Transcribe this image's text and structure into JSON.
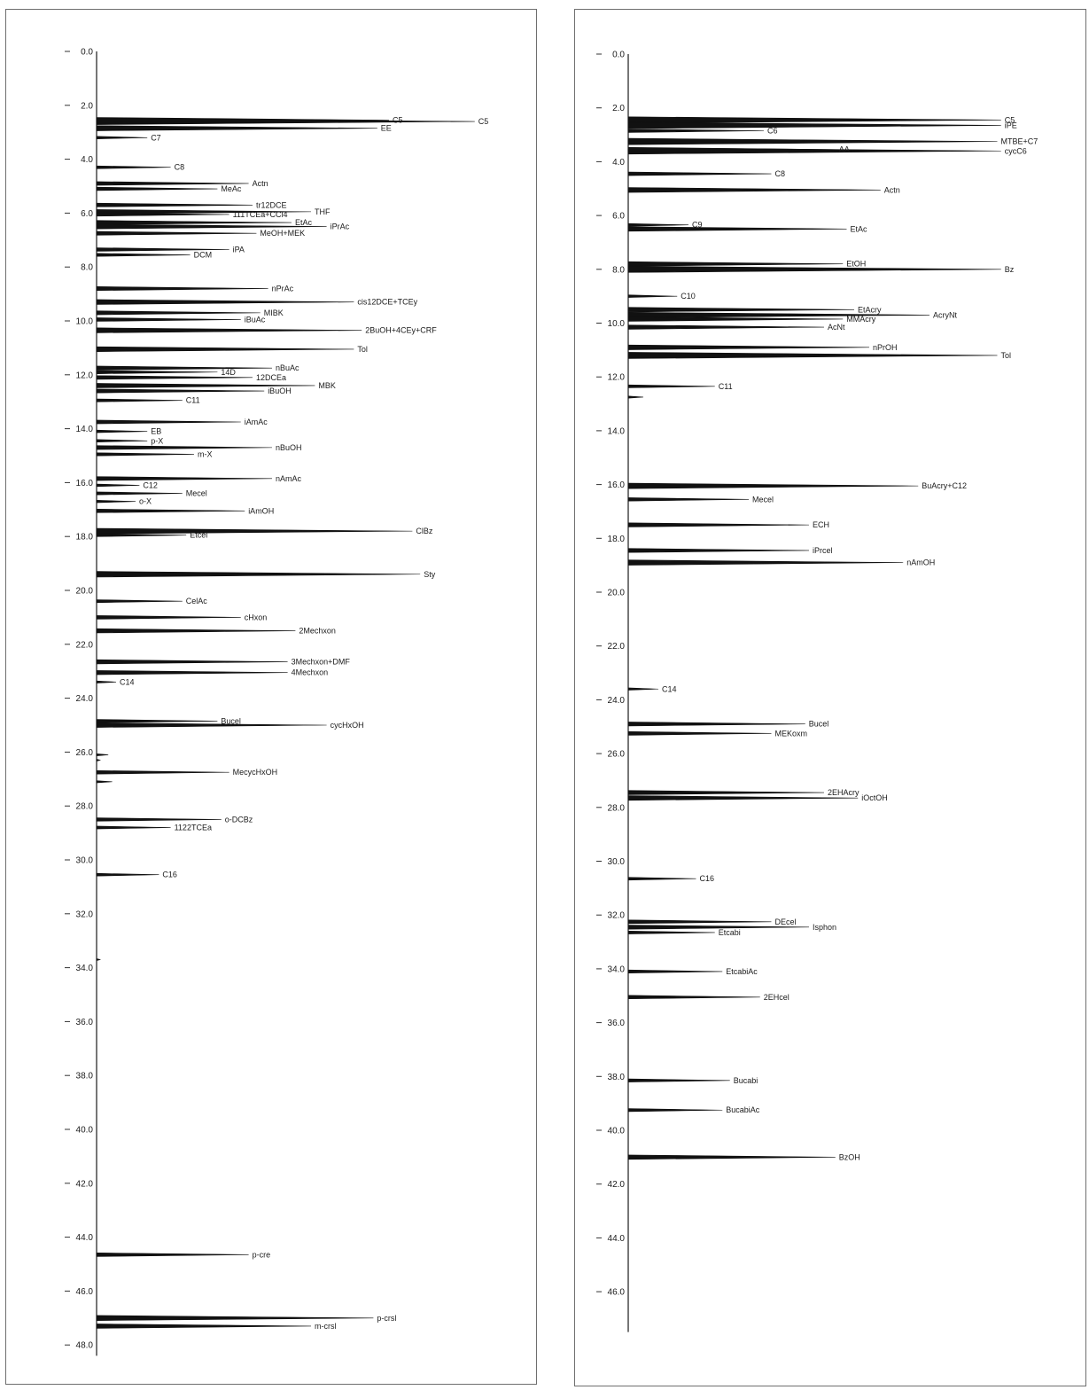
{
  "chart_data": [
    {
      "type": "line",
      "orientation": "vertical",
      "title": "",
      "xlabel": "",
      "ylabel": "",
      "yticks": [
        0.0,
        2.0,
        4.0,
        6.0,
        8.0,
        10.0,
        12.0,
        14.0,
        16.0,
        18.0,
        20.0,
        22.0,
        24.0,
        26.0,
        28.0,
        30.0,
        32.0,
        34.0,
        36.0,
        38.0,
        40.0,
        42.0,
        44.0,
        46.0,
        48.0
      ],
      "ylim": [
        0,
        48
      ],
      "grid": false,
      "peaks": [
        {
          "t": 2.6,
          "h": 0.97,
          "label": "C5"
        },
        {
          "t": 2.55,
          "h": 0.75,
          "label": "C5"
        },
        {
          "t": 2.85,
          "h": 0.72,
          "label": "EE"
        },
        {
          "t": 3.2,
          "h": 0.13,
          "label": "C7"
        },
        {
          "t": 4.3,
          "h": 0.19,
          "label": "C8"
        },
        {
          "t": 4.9,
          "h": 0.39,
          "label": "Actn"
        },
        {
          "t": 5.1,
          "h": 0.31,
          "label": "MeAc"
        },
        {
          "t": 5.7,
          "h": 0.4,
          "label": "tr12DCE"
        },
        {
          "t": 5.95,
          "h": 0.55,
          "label": "THF"
        },
        {
          "t": 6.05,
          "h": 0.34,
          "label": "111TCEa+CCl4"
        },
        {
          "t": 6.35,
          "h": 0.5,
          "label": "EtAc"
        },
        {
          "t": 6.5,
          "h": 0.59,
          "label": "iPrAc"
        },
        {
          "t": 6.75,
          "h": 0.41,
          "label": "MeOH+MEK"
        },
        {
          "t": 7.35,
          "h": 0.34,
          "label": "iPA"
        },
        {
          "t": 7.55,
          "h": 0.24,
          "label": "DCM"
        },
        {
          "t": 8.8,
          "h": 0.44,
          "label": "nPrAc"
        },
        {
          "t": 9.3,
          "h": 0.66,
          "label": "cis12DCE+TCEy"
        },
        {
          "t": 9.7,
          "h": 0.42,
          "label": "MIBK"
        },
        {
          "t": 9.95,
          "h": 0.37,
          "label": "iBuAc"
        },
        {
          "t": 10.35,
          "h": 0.68,
          "label": "2BuOH+4CEy+CRF"
        },
        {
          "t": 11.05,
          "h": 0.66,
          "label": "Tol"
        },
        {
          "t": 11.75,
          "h": 0.45,
          "label": "nBuAc"
        },
        {
          "t": 11.9,
          "h": 0.31,
          "label": "14D"
        },
        {
          "t": 12.1,
          "h": 0.4,
          "label": "12DCEa"
        },
        {
          "t": 12.4,
          "h": 0.56,
          "label": "MBK"
        },
        {
          "t": 12.6,
          "h": 0.43,
          "label": "iBuOH"
        },
        {
          "t": 12.95,
          "h": 0.22,
          "label": "C11"
        },
        {
          "t": 13.75,
          "h": 0.37,
          "label": "iAmAc"
        },
        {
          "t": 14.1,
          "h": 0.13,
          "label": "EB"
        },
        {
          "t": 14.45,
          "h": 0.13,
          "label": "p-X"
        },
        {
          "t": 14.7,
          "h": 0.45,
          "label": "nBuOH"
        },
        {
          "t": 14.95,
          "h": 0.25,
          "label": "m-X"
        },
        {
          "t": 15.85,
          "h": 0.45,
          "label": "nAmAc"
        },
        {
          "t": 16.1,
          "h": 0.11,
          "label": "C12"
        },
        {
          "t": 16.4,
          "h": 0.22,
          "label": "Mecel"
        },
        {
          "t": 16.7,
          "h": 0.1,
          "label": "o-X"
        },
        {
          "t": 17.05,
          "h": 0.38,
          "label": "iAmOH"
        },
        {
          "t": 17.8,
          "h": 0.81,
          "label": "ClBz"
        },
        {
          "t": 17.95,
          "h": 0.23,
          "label": "Etcel"
        },
        {
          "t": 19.4,
          "h": 0.83,
          "label": "Sty"
        },
        {
          "t": 20.4,
          "h": 0.22,
          "label": "CelAc"
        },
        {
          "t": 21.0,
          "h": 0.37,
          "label": "cHxon"
        },
        {
          "t": 21.5,
          "h": 0.51,
          "label": "2Mechxon"
        },
        {
          "t": 22.65,
          "h": 0.49,
          "label": "3Mechxon+DMF"
        },
        {
          "t": 23.05,
          "h": 0.49,
          "label": "4Mechxon"
        },
        {
          "t": 23.4,
          "h": 0.05,
          "label": "C14"
        },
        {
          "t": 24.85,
          "h": 0.31,
          "label": "Bucel"
        },
        {
          "t": 25.0,
          "h": 0.59,
          "label": "cycHxOH"
        },
        {
          "t": 26.1,
          "h": 0.03,
          "label": ""
        },
        {
          "t": 26.3,
          "h": 0.01,
          "label": ""
        },
        {
          "t": 26.75,
          "h": 0.34,
          "label": "MecycHxOH"
        },
        {
          "t": 27.1,
          "h": 0.04,
          "label": ""
        },
        {
          "t": 28.5,
          "h": 0.32,
          "label": "o-DCBz"
        },
        {
          "t": 28.8,
          "h": 0.19,
          "label": "1122TCEa"
        },
        {
          "t": 30.55,
          "h": 0.16,
          "label": "C16"
        },
        {
          "t": 33.7,
          "h": 0.01,
          "label": ""
        },
        {
          "t": 44.65,
          "h": 0.39,
          "label": "p-cre"
        },
        {
          "t": 47.0,
          "h": 0.71,
          "label": "p-crsl"
        },
        {
          "t": 47.3,
          "h": 0.55,
          "label": "m-crsl"
        }
      ]
    },
    {
      "type": "line",
      "orientation": "vertical",
      "title": "",
      "xlabel": "",
      "ylabel": "",
      "yticks": [
        0.0,
        2.0,
        4.0,
        6.0,
        8.0,
        10.0,
        12.0,
        14.0,
        16.0,
        18.0,
        20.0,
        22.0,
        24.0,
        26.0,
        28.0,
        30.0,
        32.0,
        34.0,
        36.0,
        38.0,
        40.0,
        42.0,
        44.0,
        46.0
      ],
      "ylim": [
        0,
        48
      ],
      "grid": false,
      "peaks": [
        {
          "t": 2.45,
          "h": 0.99,
          "label": "C5"
        },
        {
          "t": 2.65,
          "h": 0.99,
          "label": "iPE"
        },
        {
          "t": 2.85,
          "h": 0.36,
          "label": "C6"
        },
        {
          "t": 3.25,
          "h": 0.98,
          "label": "MTBE+C7"
        },
        {
          "t": 3.6,
          "h": 0.99,
          "label": "cycC6"
        },
        {
          "t": 3.55,
          "h": 0.55,
          "label": "AA"
        },
        {
          "t": 4.45,
          "h": 0.38,
          "label": "C8"
        },
        {
          "t": 5.05,
          "h": 0.67,
          "label": "Actn"
        },
        {
          "t": 6.35,
          "h": 0.16,
          "label": "C9"
        },
        {
          "t": 6.5,
          "h": 0.58,
          "label": "EtAc"
        },
        {
          "t": 7.8,
          "h": 0.57,
          "label": "EtOH"
        },
        {
          "t": 8.0,
          "h": 0.99,
          "label": "Bz"
        },
        {
          "t": 9.0,
          "h": 0.13,
          "label": "C10"
        },
        {
          "t": 9.5,
          "h": 0.6,
          "label": "EtAcry"
        },
        {
          "t": 9.7,
          "h": 0.8,
          "label": "AcryNt"
        },
        {
          "t": 9.85,
          "h": 0.57,
          "label": "MMAcry"
        },
        {
          "t": 10.15,
          "h": 0.52,
          "label": "AcNt"
        },
        {
          "t": 10.9,
          "h": 0.64,
          "label": "nPrOH"
        },
        {
          "t": 11.2,
          "h": 0.98,
          "label": "Tol"
        },
        {
          "t": 12.35,
          "h": 0.23,
          "label": "C11"
        },
        {
          "t": 12.75,
          "h": 0.04,
          "label": ""
        },
        {
          "t": 16.05,
          "h": 0.77,
          "label": "BuAcry+C12"
        },
        {
          "t": 16.55,
          "h": 0.32,
          "label": "Mecel"
        },
        {
          "t": 17.5,
          "h": 0.48,
          "label": "ECH"
        },
        {
          "t": 18.45,
          "h": 0.48,
          "label": "iPrcel"
        },
        {
          "t": 18.9,
          "h": 0.73,
          "label": "nAmOH"
        },
        {
          "t": 23.6,
          "h": 0.08,
          "label": "C14"
        },
        {
          "t": 24.9,
          "h": 0.47,
          "label": "Bucel"
        },
        {
          "t": 25.25,
          "h": 0.38,
          "label": "MEKoxm"
        },
        {
          "t": 27.45,
          "h": 0.52,
          "label": "2EHAcry"
        },
        {
          "t": 27.65,
          "h": 0.61,
          "label": "iOctOH"
        },
        {
          "t": 30.65,
          "h": 0.18,
          "label": "C16"
        },
        {
          "t": 32.25,
          "h": 0.38,
          "label": "DEcel"
        },
        {
          "t": 32.45,
          "h": 0.48,
          "label": "Isphon"
        },
        {
          "t": 32.65,
          "h": 0.23,
          "label": "Etcabi"
        },
        {
          "t": 34.1,
          "h": 0.25,
          "label": "EtcabiAc"
        },
        {
          "t": 35.05,
          "h": 0.35,
          "label": "2EHcel"
        },
        {
          "t": 38.15,
          "h": 0.27,
          "label": "Bucabi"
        },
        {
          "t": 39.25,
          "h": 0.25,
          "label": "BucabiAc"
        },
        {
          "t": 41.0,
          "h": 0.55,
          "label": "BzOH"
        }
      ]
    }
  ]
}
